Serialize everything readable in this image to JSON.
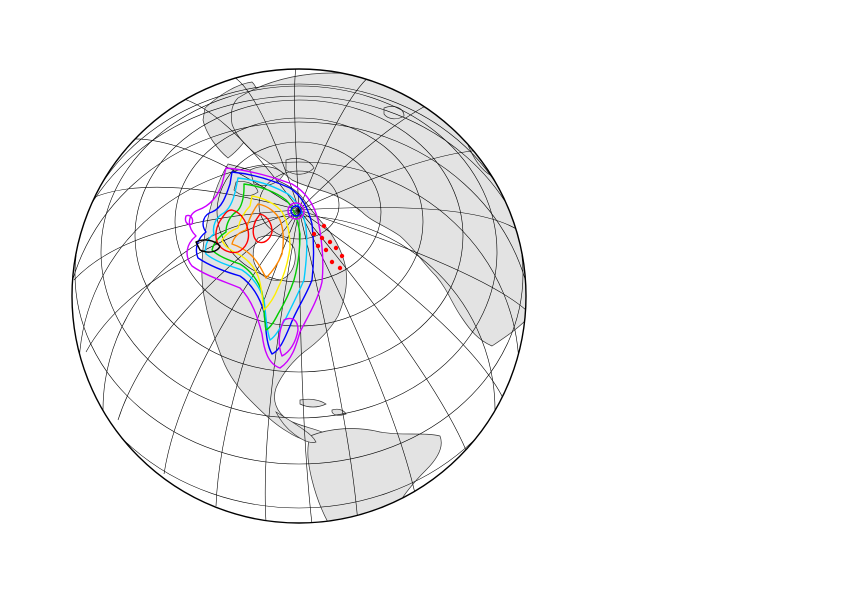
{
  "map": {
    "projection": "orthographic",
    "colors": {
      "ocean": "#ffffff",
      "land": "#e3e3e3",
      "coast": "#333333",
      "graticule": "#000000"
    },
    "contour_colors": [
      "#cc00ff",
      "#0000ff",
      "#00ccff",
      "#00cc00",
      "#ffee00",
      "#ff8800",
      "#ff0000",
      "#000000"
    ],
    "station_marker_color": "#ff0000"
  }
}
